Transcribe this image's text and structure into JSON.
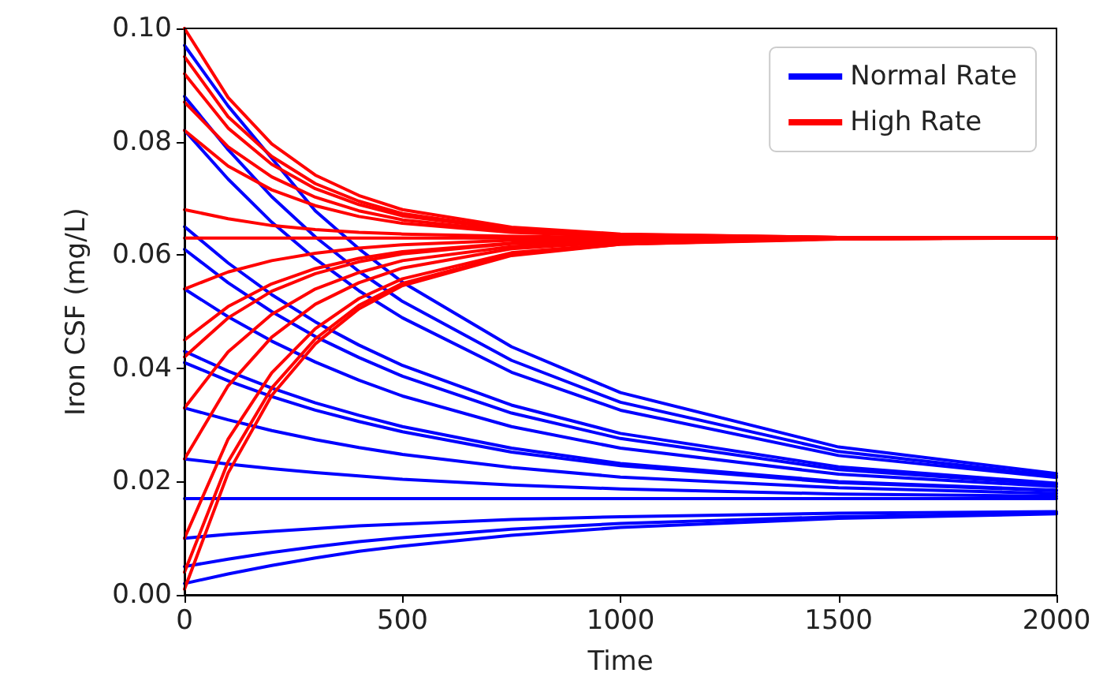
{
  "chart_data": {
    "type": "line",
    "xlabel": "Time",
    "ylabel": "Iron CSF (mg/L)",
    "x": [
      0,
      100,
      200,
      300,
      400,
      500,
      750,
      1000,
      1500,
      2000
    ],
    "xlim": [
      0,
      2000
    ],
    "xticks": [
      0,
      500,
      1000,
      1500,
      2000
    ],
    "ylim": [
      0,
      0.1
    ],
    "yticks": [
      {
        "value": 0,
        "label": "0.00"
      },
      {
        "value": 0.02,
        "label": "0.02"
      },
      {
        "value": 0.04,
        "label": "0.04"
      },
      {
        "value": 0.06,
        "label": "0.06"
      },
      {
        "value": 0.08,
        "label": "0.08"
      },
      {
        "value": 0.1,
        "label": "0.10"
      }
    ],
    "grid": false,
    "legend": "top right",
    "series": [
      {
        "name": "Normal Rate",
        "color": "#0000ff",
        "values": [
          0.097,
          0.0863,
          0.0771,
          0.0678,
          0.0611,
          0.0552,
          0.0438,
          0.0357,
          0.0261,
          0.0214
        ]
      },
      {
        "color": "#0000ff",
        "values": [
          0.088,
          0.0786,
          0.0703,
          0.0632,
          0.0571,
          0.0518,
          0.0414,
          0.034,
          0.0253,
          0.021
        ]
      },
      {
        "color": "#0000ff",
        "values": [
          0.082,
          0.0734,
          0.0658,
          0.0593,
          0.0537,
          0.0489,
          0.0393,
          0.0326,
          0.0246,
          0.0207
        ]
      },
      {
        "color": "#0000ff",
        "values": [
          0.065,
          0.0586,
          0.053,
          0.0482,
          0.0441,
          0.0405,
          0.0335,
          0.0285,
          0.0226,
          0.0197
        ]
      },
      {
        "color": "#0000ff",
        "values": [
          0.061,
          0.0551,
          0.05,
          0.0456,
          0.0419,
          0.0386,
          0.0321,
          0.0276,
          0.0221,
          0.0195
        ]
      },
      {
        "color": "#0000ff",
        "values": [
          0.054,
          0.0491,
          0.0448,
          0.0411,
          0.0379,
          0.0351,
          0.0297,
          0.0259,
          0.0213,
          0.0191
        ]
      },
      {
        "color": "#0000ff",
        "values": [
          0.043,
          0.0395,
          0.0365,
          0.0339,
          0.0317,
          0.0297,
          0.0259,
          0.0232,
          0.02,
          0.0185
        ]
      },
      {
        "color": "#0000ff",
        "values": [
          0.041,
          0.0378,
          0.035,
          0.0326,
          0.0306,
          0.0288,
          0.0252,
          0.0228,
          0.0198,
          0.0184
        ]
      },
      {
        "color": "#0000ff",
        "values": [
          0.033,
          0.0309,
          0.029,
          0.0274,
          0.026,
          0.0248,
          0.0225,
          0.0208,
          0.0189,
          0.0179
        ]
      },
      {
        "color": "#0000ff",
        "values": [
          0.024,
          0.0231,
          0.0223,
          0.0216,
          0.021,
          0.0204,
          0.0194,
          0.0187,
          0.0178,
          0.0174
        ]
      },
      {
        "color": "#0000ff",
        "values": [
          0.017,
          0.017,
          0.017,
          0.017,
          0.017,
          0.017,
          0.017,
          0.017,
          0.017,
          0.017
        ]
      },
      {
        "color": "#0000ff",
        "values": [
          0.01,
          0.0107,
          0.0112,
          0.0117,
          0.0122,
          0.0125,
          0.0133,
          0.0138,
          0.0144,
          0.0147
        ]
      },
      {
        "color": "#0000ff",
        "values": [
          0.005,
          0.0063,
          0.0075,
          0.0085,
          0.0094,
          0.0101,
          0.0116,
          0.0126,
          0.0138,
          0.0144
        ]
      },
      {
        "color": "#0000ff",
        "values": [
          0.002,
          0.0037,
          0.0052,
          0.0065,
          0.0077,
          0.0086,
          0.0105,
          0.0119,
          0.0135,
          0.0143
        ]
      },
      {
        "name": "High Rate",
        "color": "#ff0000",
        "values": [
          0.1,
          0.0878,
          0.0796,
          0.0741,
          0.0705,
          0.068,
          0.0649,
          0.0637,
          0.0631,
          0.063
        ]
      },
      {
        "color": "#ff0000",
        "values": [
          0.095,
          0.0844,
          0.0774,
          0.0726,
          0.0695,
          0.0673,
          0.0646,
          0.0636,
          0.0631,
          0.063
        ]
      },
      {
        "color": "#ff0000",
        "values": [
          0.092,
          0.0824,
          0.076,
          0.0717,
          0.0689,
          0.0669,
          0.0645,
          0.0635,
          0.0631,
          0.063
        ]
      },
      {
        "color": "#ff0000",
        "values": [
          0.087,
          0.0791,
          0.0738,
          0.0702,
          0.0678,
          0.0662,
          0.0642,
          0.0634,
          0.0631,
          0.063
        ]
      },
      {
        "color": "#ff0000",
        "values": [
          0.082,
          0.0757,
          0.0715,
          0.0687,
          0.0668,
          0.0656,
          0.064,
          0.0633,
          0.063,
          0.063
        ]
      },
      {
        "color": "#ff0000",
        "values": [
          0.068,
          0.0664,
          0.0652,
          0.0645,
          0.064,
          0.0637,
          0.0633,
          0.0631,
          0.063,
          0.063
        ]
      },
      {
        "color": "#ff0000",
        "values": [
          0.063,
          0.063,
          0.063,
          0.063,
          0.063,
          0.063,
          0.063,
          0.063,
          0.063,
          0.063
        ]
      },
      {
        "color": "#ff0000",
        "values": [
          0.054,
          0.057,
          0.059,
          0.0603,
          0.0612,
          0.0618,
          0.0626,
          0.0628,
          0.063,
          0.063
        ]
      },
      {
        "color": "#ff0000",
        "values": [
          0.045,
          0.0509,
          0.0549,
          0.0576,
          0.0594,
          0.0606,
          0.0621,
          0.0627,
          0.063,
          0.063
        ]
      },
      {
        "color": "#ff0000",
        "values": [
          0.042,
          0.0489,
          0.0536,
          0.0567,
          0.0588,
          0.0602,
          0.062,
          0.0626,
          0.063,
          0.063
        ]
      },
      {
        "color": "#ff0000",
        "values": [
          0.033,
          0.0429,
          0.0495,
          0.054,
          0.0569,
          0.059,
          0.0615,
          0.0625,
          0.0629,
          0.063
        ]
      },
      {
        "color": "#ff0000",
        "values": [
          0.024,
          0.0369,
          0.0455,
          0.0513,
          0.0551,
          0.0577,
          0.0611,
          0.0623,
          0.0629,
          0.063
        ]
      },
      {
        "color": "#ff0000",
        "values": [
          0.01,
          0.0275,
          0.0392,
          0.047,
          0.0523,
          0.0558,
          0.0604,
          0.062,
          0.0629,
          0.063
        ]
      },
      {
        "color": "#ff0000",
        "values": [
          0.004,
          0.0235,
          0.0365,
          0.0452,
          0.0511,
          0.055,
          0.0601,
          0.0619,
          0.0629,
          0.063
        ]
      },
      {
        "color": "#ff0000",
        "values": [
          0.001,
          0.0215,
          0.0352,
          0.0443,
          0.0505,
          0.0546,
          0.0599,
          0.0619,
          0.0628,
          0.063
        ]
      }
    ]
  }
}
